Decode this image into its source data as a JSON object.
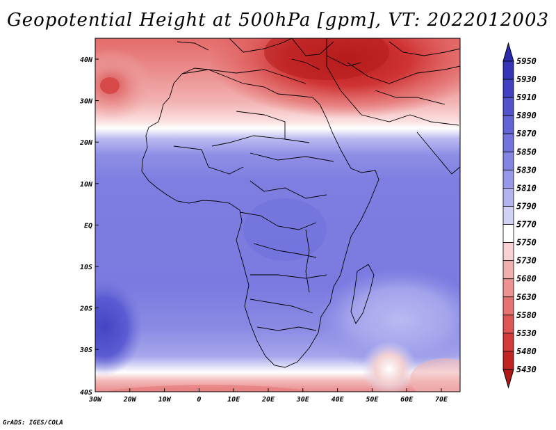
{
  "title": "Geopotential Height at 500hPa [gpm], VT: 2022012003",
  "credit": "GrADS: IGES/COLA",
  "map": {
    "variable": "Geopotential Height at 500hPa",
    "units": "gpm",
    "valid_time": "2022012003",
    "lon_range": [
      -30,
      75
    ],
    "lat_range": [
      -40,
      45
    ],
    "lon_ticks": [
      "30W",
      "20W",
      "10W",
      "0",
      "10E",
      "20E",
      "30E",
      "40E",
      "50E",
      "60E",
      "70E"
    ],
    "lat_ticks": [
      "40N",
      "30N",
      "20N",
      "10N",
      "EQ",
      "10S",
      "20S",
      "30S",
      "40S"
    ]
  },
  "colorbar": {
    "levels": [
      "5950",
      "5930",
      "5910",
      "5890",
      "5870",
      "5850",
      "5830",
      "5810",
      "5790",
      "5770",
      "5750",
      "5730",
      "5680",
      "5630",
      "5580",
      "5530",
      "5480",
      "5430"
    ],
    "colors": [
      "#2b2aa8",
      "#3535b6",
      "#4141c2",
      "#5353cc",
      "#6363d6",
      "#7373de",
      "#8484e4",
      "#9898ea",
      "#b3b3f0",
      "#d2d2f6",
      "#ffffff",
      "#f8d2d2",
      "#f2b1b1",
      "#ec9292",
      "#e67272",
      "#df5454",
      "#d43a3a",
      "#c22424",
      "#b01818"
    ]
  }
}
